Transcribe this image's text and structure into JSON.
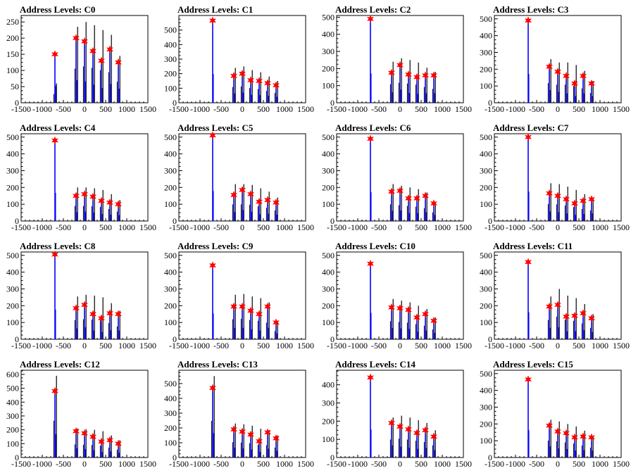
{
  "colors": {
    "frame": "#000000",
    "black_hist": "#000000",
    "blue_hist": "#0000ff",
    "marker": "#ff0000"
  },
  "x_ticks": [
    -1500,
    -1000,
    -500,
    0,
    500,
    1000,
    1500
  ],
  "x_tick_labels": [
    "-1500",
    "-1000",
    "-500",
    "0",
    "500",
    "1000",
    "1500"
  ],
  "charts": [
    {
      "type": "bar",
      "title": "Address Levels: C0",
      "xlim": [
        -1500,
        1500
      ],
      "ylim": [
        0,
        270
      ],
      "y_ticks": [
        0,
        50,
        100,
        150,
        200,
        250
      ],
      "peaks": [
        {
          "x": -700,
          "y": 150
        },
        {
          "x": -200,
          "y": 200
        },
        {
          "x": 0,
          "y": 190
        },
        {
          "x": 200,
          "y": 160
        },
        {
          "x": 400,
          "y": 130
        },
        {
          "x": 600,
          "y": 165
        },
        {
          "x": 800,
          "y": 125
        }
      ],
      "black_max": [
        60,
        235,
        250,
        240,
        225,
        210,
        145
      ]
    },
    {
      "type": "bar",
      "title": "Address Levels: C1",
      "xlim": [
        -1500,
        1500
      ],
      "ylim": [
        0,
        600
      ],
      "y_ticks": [
        0,
        100,
        200,
        300,
        400,
        500
      ],
      "peaks": [
        {
          "x": -700,
          "y": 565
        },
        {
          "x": -200,
          "y": 185
        },
        {
          "x": 0,
          "y": 200
        },
        {
          "x": 200,
          "y": 155
        },
        {
          "x": 400,
          "y": 150
        },
        {
          "x": 600,
          "y": 135
        },
        {
          "x": 800,
          "y": 120
        }
      ],
      "black_max": [
        0,
        240,
        250,
        225,
        210,
        180,
        150
      ]
    },
    {
      "type": "bar",
      "title": "Address Levels: C2",
      "xlim": [
        -1500,
        1500
      ],
      "ylim": [
        0,
        510
      ],
      "y_ticks": [
        0,
        100,
        200,
        300,
        400,
        500
      ],
      "peaks": [
        {
          "x": -700,
          "y": 490
        },
        {
          "x": -200,
          "y": 175
        },
        {
          "x": 0,
          "y": 220
        },
        {
          "x": 200,
          "y": 165
        },
        {
          "x": 400,
          "y": 150
        },
        {
          "x": 600,
          "y": 160
        },
        {
          "x": 800,
          "y": 160
        }
      ],
      "black_max": [
        0,
        240,
        260,
        250,
        235,
        205,
        180
      ]
    },
    {
      "type": "bar",
      "title": "Address Levels: C3",
      "xlim": [
        -1500,
        1500
      ],
      "ylim": [
        0,
        520
      ],
      "y_ticks": [
        0,
        100,
        200,
        300,
        400,
        500
      ],
      "peaks": [
        {
          "x": -700,
          "y": 490
        },
        {
          "x": -200,
          "y": 215
        },
        {
          "x": 0,
          "y": 185
        },
        {
          "x": 200,
          "y": 160
        },
        {
          "x": 400,
          "y": 115
        },
        {
          "x": 600,
          "y": 160
        },
        {
          "x": 800,
          "y": 115
        }
      ],
      "black_max": [
        0,
        260,
        240,
        240,
        225,
        190,
        130
      ]
    },
    {
      "type": "bar",
      "title": "Address Levels: C4",
      "xlim": [
        -1500,
        1500
      ],
      "ylim": [
        0,
        520
      ],
      "y_ticks": [
        0,
        100,
        200,
        300,
        400,
        500
      ],
      "peaks": [
        {
          "x": -700,
          "y": 480
        },
        {
          "x": -200,
          "y": 150
        },
        {
          "x": 0,
          "y": 160
        },
        {
          "x": 200,
          "y": 145
        },
        {
          "x": 400,
          "y": 120
        },
        {
          "x": 600,
          "y": 110
        },
        {
          "x": 800,
          "y": 100
        }
      ],
      "black_max": [
        0,
        200,
        200,
        195,
        185,
        160,
        125
      ]
    },
    {
      "type": "bar",
      "title": "Address Levels: C5",
      "xlim": [
        -1500,
        1500
      ],
      "ylim": [
        0,
        520
      ],
      "y_ticks": [
        0,
        100,
        200,
        300,
        400,
        500
      ],
      "peaks": [
        {
          "x": -700,
          "y": 510
        },
        {
          "x": -200,
          "y": 155
        },
        {
          "x": 0,
          "y": 185
        },
        {
          "x": 200,
          "y": 160
        },
        {
          "x": 400,
          "y": 115
        },
        {
          "x": 600,
          "y": 125
        },
        {
          "x": 800,
          "y": 110
        }
      ],
      "black_max": [
        0,
        220,
        220,
        215,
        195,
        175,
        140
      ]
    },
    {
      "type": "bar",
      "title": "Address Levels: C6",
      "xlim": [
        -1500,
        1500
      ],
      "ylim": [
        0,
        520
      ],
      "y_ticks": [
        0,
        100,
        200,
        300,
        400,
        500
      ],
      "peaks": [
        {
          "x": -700,
          "y": 490
        },
        {
          "x": -200,
          "y": 175
        },
        {
          "x": 0,
          "y": 180
        },
        {
          "x": 200,
          "y": 135
        },
        {
          "x": 400,
          "y": 135
        },
        {
          "x": 600,
          "y": 150
        },
        {
          "x": 800,
          "y": 105
        }
      ],
      "black_max": [
        0,
        220,
        210,
        200,
        190,
        170,
        115
      ]
    },
    {
      "type": "bar",
      "title": "Address Levels: C7",
      "xlim": [
        -1500,
        1500
      ],
      "ylim": [
        0,
        520
      ],
      "y_ticks": [
        0,
        100,
        200,
        300,
        400,
        500
      ],
      "peaks": [
        {
          "x": -700,
          "y": 500
        },
        {
          "x": -200,
          "y": 165
        },
        {
          "x": 0,
          "y": 150
        },
        {
          "x": 200,
          "y": 130
        },
        {
          "x": 400,
          "y": 105
        },
        {
          "x": 600,
          "y": 120
        },
        {
          "x": 800,
          "y": 130
        }
      ],
      "black_max": [
        0,
        225,
        220,
        205,
        185,
        160,
        140
      ]
    },
    {
      "type": "bar",
      "title": "Address Levels: C8",
      "xlim": [
        -1500,
        1500
      ],
      "ylim": [
        0,
        520
      ],
      "y_ticks": [
        0,
        100,
        200,
        300,
        400,
        500
      ],
      "peaks": [
        {
          "x": -700,
          "y": 505
        },
        {
          "x": -200,
          "y": 185
        },
        {
          "x": 0,
          "y": 205
        },
        {
          "x": 200,
          "y": 150
        },
        {
          "x": 400,
          "y": 125
        },
        {
          "x": 600,
          "y": 155
        },
        {
          "x": 800,
          "y": 150
        }
      ],
      "black_max": [
        0,
        255,
        265,
        260,
        250,
        215,
        170
      ]
    },
    {
      "type": "bar",
      "title": "Address Levels: C9",
      "xlim": [
        -1500,
        1500
      ],
      "ylim": [
        0,
        520
      ],
      "y_ticks": [
        0,
        100,
        200,
        300,
        400,
        500
      ],
      "peaks": [
        {
          "x": -700,
          "y": 440
        },
        {
          "x": -200,
          "y": 195
        },
        {
          "x": 0,
          "y": 195
        },
        {
          "x": 200,
          "y": 170
        },
        {
          "x": 400,
          "y": 150
        },
        {
          "x": 600,
          "y": 195
        },
        {
          "x": 800,
          "y": 100
        }
      ],
      "black_max": [
        0,
        265,
        270,
        255,
        245,
        220,
        110
      ]
    },
    {
      "type": "bar",
      "title": "Address Levels: C10",
      "xlim": [
        -1500,
        1500
      ],
      "ylim": [
        0,
        520
      ],
      "y_ticks": [
        0,
        100,
        200,
        300,
        400,
        500
      ],
      "peaks": [
        {
          "x": -700,
          "y": 450
        },
        {
          "x": -200,
          "y": 190
        },
        {
          "x": 0,
          "y": 185
        },
        {
          "x": 200,
          "y": 175
        },
        {
          "x": 400,
          "y": 130
        },
        {
          "x": 600,
          "y": 150
        },
        {
          "x": 800,
          "y": 110
        }
      ],
      "black_max": [
        0,
        240,
        230,
        220,
        200,
        180,
        130
      ]
    },
    {
      "type": "bar",
      "title": "Address Levels: C11",
      "xlim": [
        -1500,
        1500
      ],
      "ylim": [
        0,
        520
      ],
      "y_ticks": [
        0,
        100,
        200,
        300,
        400,
        500
      ],
      "peaks": [
        {
          "x": -700,
          "y": 460
        },
        {
          "x": -200,
          "y": 195
        },
        {
          "x": 0,
          "y": 205
        },
        {
          "x": 200,
          "y": 135
        },
        {
          "x": 400,
          "y": 140
        },
        {
          "x": 600,
          "y": 155
        },
        {
          "x": 800,
          "y": 125
        }
      ],
      "black_max": [
        0,
        255,
        300,
        260,
        245,
        210,
        150
      ]
    },
    {
      "type": "bar",
      "title": "Address Levels: C12",
      "xlim": [
        -1500,
        1500
      ],
      "ylim": [
        0,
        630
      ],
      "y_ticks": [
        0,
        100,
        200,
        300,
        400,
        500,
        600
      ],
      "peaks": [
        {
          "x": -700,
          "y": 480
        },
        {
          "x": -200,
          "y": 190
        },
        {
          "x": 0,
          "y": 175
        },
        {
          "x": 200,
          "y": 150
        },
        {
          "x": 400,
          "y": 115
        },
        {
          "x": 600,
          "y": 125
        },
        {
          "x": 800,
          "y": 100
        }
      ],
      "black_max": [
        590,
        210,
        205,
        200,
        190,
        160,
        125
      ]
    },
    {
      "type": "bar",
      "title": "Address Levels: C13",
      "xlim": [
        -1500,
        1500
      ],
      "ylim": [
        0,
        590
      ],
      "y_ticks": [
        0,
        100,
        200,
        300,
        400,
        500
      ],
      "peaks": [
        {
          "x": -700,
          "y": 470
        },
        {
          "x": -200,
          "y": 190
        },
        {
          "x": 0,
          "y": 175
        },
        {
          "x": 200,
          "y": 155
        },
        {
          "x": 400,
          "y": 110
        },
        {
          "x": 600,
          "y": 170
        },
        {
          "x": 800,
          "y": 130
        }
      ],
      "black_max": [
        550,
        230,
        225,
        215,
        195,
        185,
        150
      ]
    },
    {
      "type": "bar",
      "title": "Address Levels: C14",
      "xlim": [
        -1500,
        1500
      ],
      "ylim": [
        0,
        480
      ],
      "y_ticks": [
        0,
        100,
        200,
        300,
        400
      ],
      "peaks": [
        {
          "x": -700,
          "y": 440
        },
        {
          "x": -200,
          "y": 190
        },
        {
          "x": 0,
          "y": 170
        },
        {
          "x": 200,
          "y": 155
        },
        {
          "x": 400,
          "y": 135
        },
        {
          "x": 600,
          "y": 150
        },
        {
          "x": 800,
          "y": 115
        }
      ],
      "black_max": [
        0,
        220,
        230,
        220,
        205,
        190,
        150
      ]
    },
    {
      "type": "bar",
      "title": "Address Levels: C15",
      "xlim": [
        -1500,
        1500
      ],
      "ylim": [
        0,
        520
      ],
      "y_ticks": [
        0,
        100,
        200,
        300,
        400,
        500
      ],
      "peaks": [
        {
          "x": -700,
          "y": 465
        },
        {
          "x": -200,
          "y": 190
        },
        {
          "x": 0,
          "y": 155
        },
        {
          "x": 200,
          "y": 145
        },
        {
          "x": 400,
          "y": 120
        },
        {
          "x": 600,
          "y": 125
        },
        {
          "x": 800,
          "y": 120
        }
      ],
      "black_max": [
        0,
        225,
        215,
        200,
        185,
        160,
        130
      ]
    }
  ]
}
